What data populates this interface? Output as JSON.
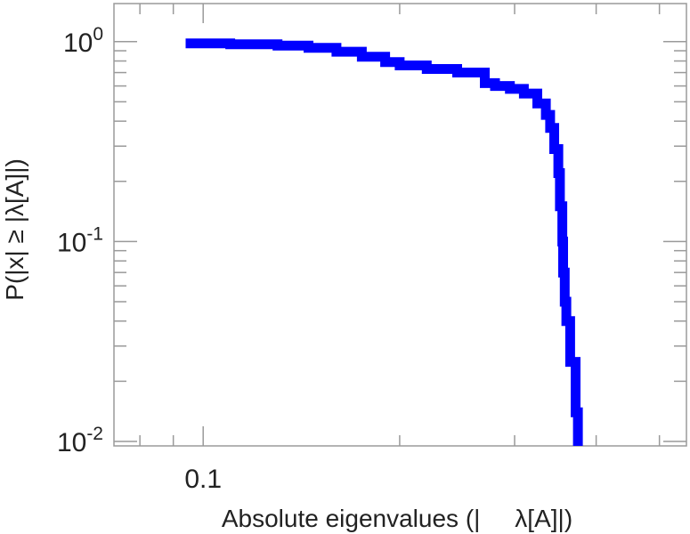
{
  "chart_data": {
    "type": "line",
    "title": "",
    "xlabel": "Absolute eigenvalues (|     λ[A]|)",
    "ylabel": "P(|x| ≥ |λ[A]|)",
    "xscale": "log",
    "yscale": "log",
    "xlim": [
      0.073,
      0.55
    ],
    "ylim": [
      0.0095,
      1.55
    ],
    "grid": false,
    "x_ticks": [
      {
        "value": 0.1,
        "label": "0.1"
      }
    ],
    "y_ticks": [
      {
        "value": 1,
        "base": "10",
        "exp": "0"
      },
      {
        "value": 0.1,
        "base": "10",
        "exp": "-1"
      },
      {
        "value": 0.01,
        "base": "10",
        "exp": "-2"
      }
    ],
    "series": [
      {
        "color": "#0000ff",
        "style": "step",
        "x": [
          0.094,
          0.11,
          0.13,
          0.145,
          0.16,
          0.175,
          0.19,
          0.2,
          0.22,
          0.245,
          0.27,
          0.28,
          0.295,
          0.31,
          0.325,
          0.335,
          0.34,
          0.345,
          0.35,
          0.352,
          0.355,
          0.356,
          0.358,
          0.36,
          0.365,
          0.372,
          0.375
        ],
        "y": [
          0.98,
          0.97,
          0.955,
          0.93,
          0.89,
          0.84,
          0.79,
          0.76,
          0.73,
          0.7,
          0.62,
          0.6,
          0.58,
          0.55,
          0.49,
          0.43,
          0.37,
          0.29,
          0.22,
          0.15,
          0.1,
          0.07,
          0.05,
          0.04,
          0.025,
          0.014,
          0.0095
        ]
      }
    ]
  }
}
